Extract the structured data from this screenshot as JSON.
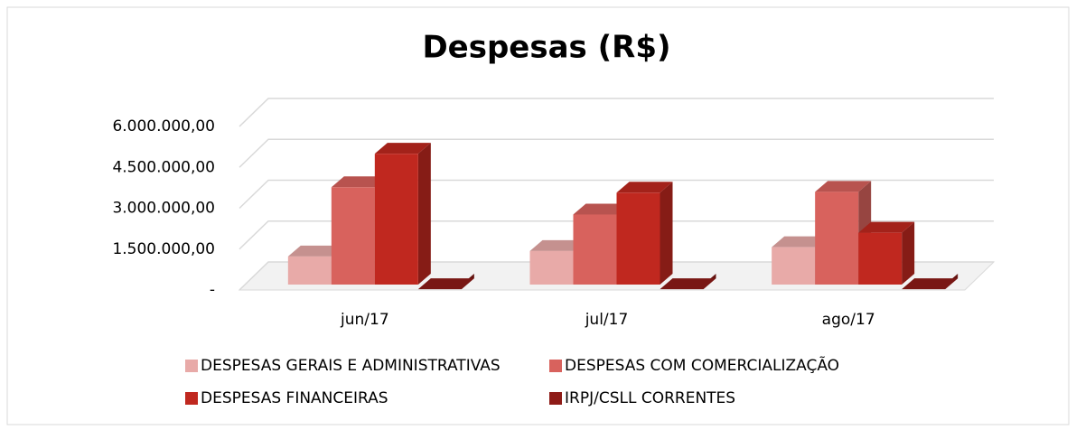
{
  "chart_data": {
    "type": "bar3d",
    "title": "Despesas (R$)",
    "categories": [
      "jun/17",
      "jul/17",
      "ago/17"
    ],
    "series": [
      {
        "name": "DESPESAS GERAIS E ADMINISTRATIVAS",
        "color": "#e8aaa8",
        "values": [
          1230000,
          1430000,
          1570000
        ]
      },
      {
        "name": "DESPESAS COM COMERCIALIZAÇÃO",
        "color": "#d8625d",
        "values": [
          3770000,
          2770000,
          3600000
        ]
      },
      {
        "name": "DESPESAS FINANCEIRAS",
        "color": "#c0281f",
        "values": [
          5000000,
          3570000,
          2100000
        ]
      },
      {
        "name": "IRPJ/CSLL CORRENTES",
        "color": "#8e1b17",
        "values": [
          30000,
          30000,
          30000
        ]
      }
    ],
    "ylim": [
      0,
      6000000
    ],
    "yticks": [
      {
        "value": 0,
        "label": "-"
      },
      {
        "value": 1500000,
        "label": "1.500.000,00"
      },
      {
        "value": 3000000,
        "label": "3.000.000,00"
      },
      {
        "value": 4500000,
        "label": "4.500.000,00"
      },
      {
        "value": 6000000,
        "label": "6.000.000,00"
      }
    ],
    "grid": true,
    "legend": "bottom"
  }
}
